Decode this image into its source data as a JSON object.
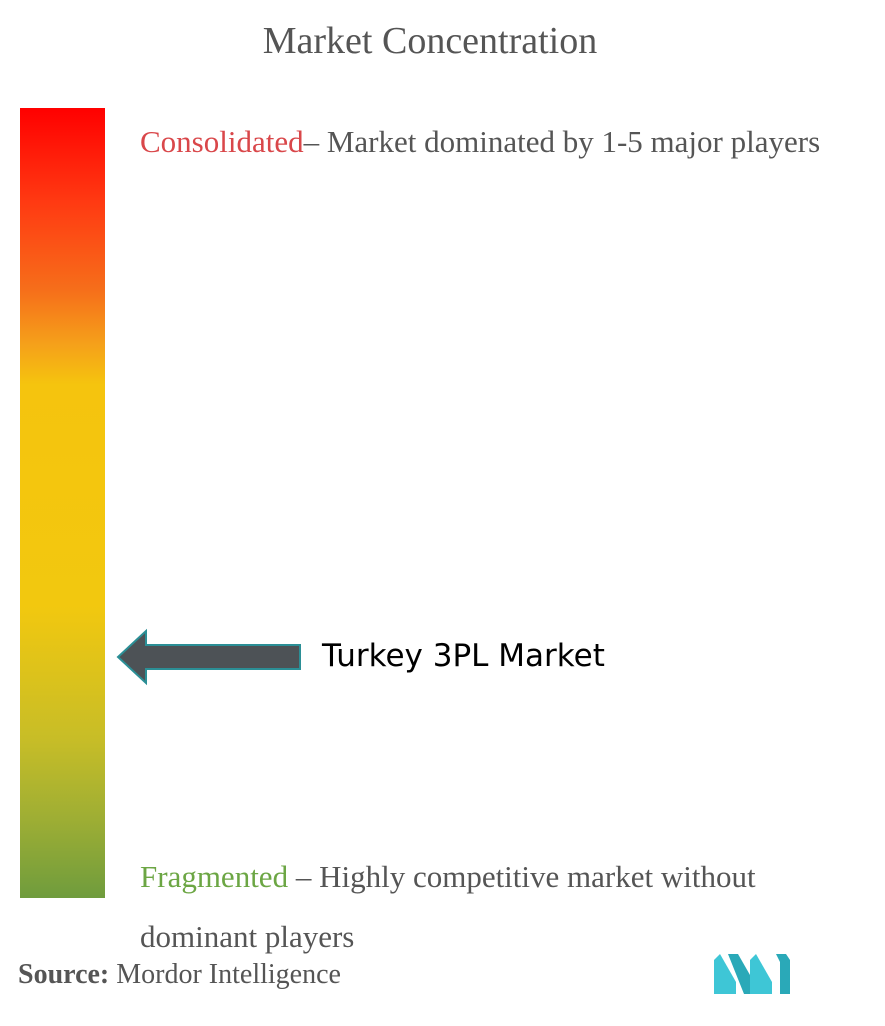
{
  "title": "Market Concentration",
  "consolidated": {
    "label": "Consolidated",
    "description": "– Market dominated by 1-5 major players",
    "color": "#d9474a"
  },
  "fragmented": {
    "label": "Fragmented",
    "description": " – Highly competitive market without dominant players",
    "color": "#6ca644"
  },
  "market": {
    "name": "Turkey 3PL Market"
  },
  "source": {
    "label": "Source:",
    "value": " Mordor Intelligence"
  },
  "logo": {
    "icon": "mordor-intelligence-logo",
    "color": "#3ec6d6"
  }
}
